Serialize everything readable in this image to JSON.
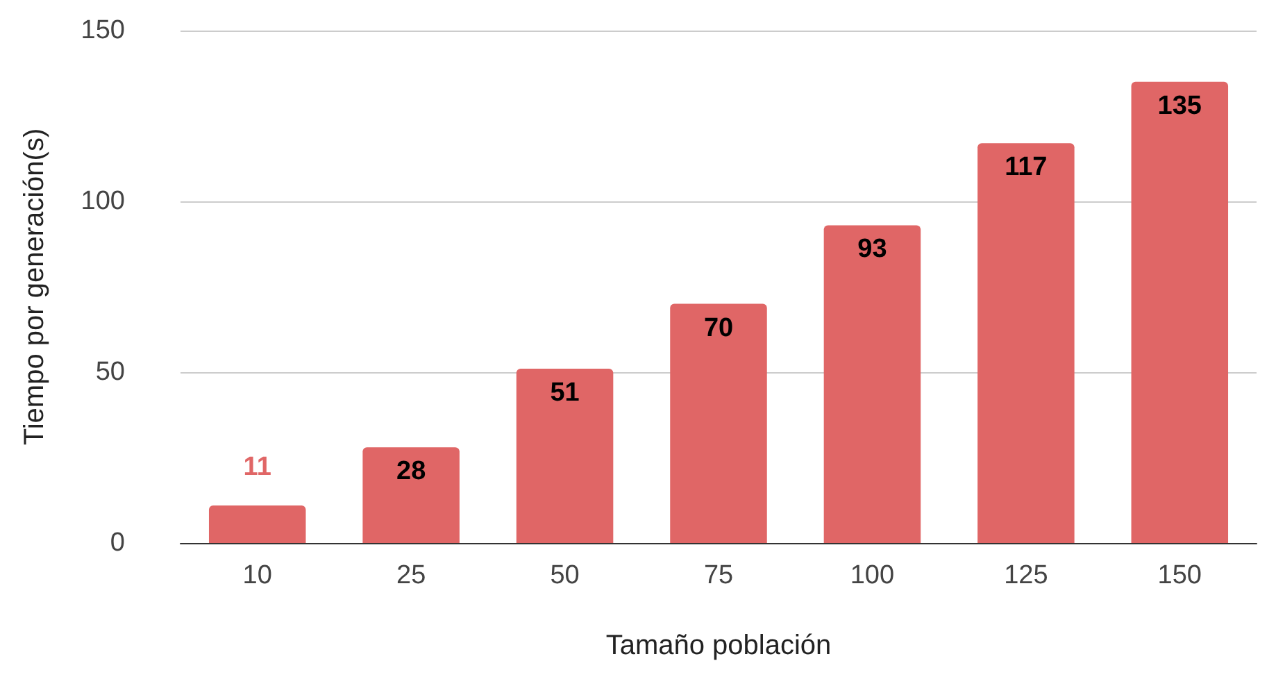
{
  "chart_data": {
    "type": "bar",
    "xlabel": "Tamaño población",
    "ylabel": "Tiempo por generación(s)",
    "categories": [
      "10",
      "25",
      "50",
      "75",
      "100",
      "125",
      "150"
    ],
    "values": [
      11,
      28,
      51,
      70,
      93,
      117,
      135
    ],
    "color": "#e06666",
    "ylim": [
      0,
      150
    ],
    "yticks": [
      0,
      50,
      100,
      150
    ],
    "grid": "y",
    "data_labels": true
  }
}
